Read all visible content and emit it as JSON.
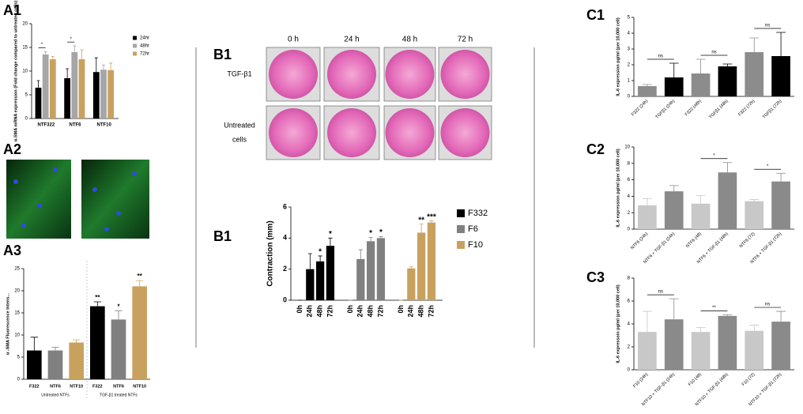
{
  "chart_data": [
    {
      "type": "bar",
      "panel": "A1",
      "y_label": "α-SMA mRNA expression (Fold change compared to untreated cells)",
      "categories": [
        "NTF322",
        "NTF6",
        "NTF10"
      ],
      "series": [
        {
          "name": "24hr",
          "color": "#000000",
          "values": [
            6.5,
            8.5,
            9.8
          ],
          "errors": [
            1.5,
            2,
            3
          ]
        },
        {
          "name": "48hr",
          "color": "#a6a6a6",
          "values": [
            13.5,
            14,
            10.3
          ],
          "errors": [
            0.6,
            1.3,
            1
          ]
        },
        {
          "name": "72hr",
          "color": "#c9a15f",
          "values": [
            12.5,
            12.5,
            10.2
          ],
          "errors": [
            0.6,
            2,
            1.5
          ]
        }
      ],
      "ylim": [
        0,
        20
      ],
      "yticks": [
        0,
        5,
        10,
        15,
        20
      ],
      "brackets": [
        {
          "label": "*",
          "category": 0,
          "series": [
            0,
            1
          ]
        },
        {
          "label": "*",
          "category": 1,
          "series": [
            0,
            1
          ]
        }
      ]
    },
    {
      "type": "bar",
      "panel": "A3",
      "y_label": "α -SMA Fluorescence Intens...",
      "categories": [
        "F322",
        "NTF6",
        "NTF10",
        "F322",
        "NTF6",
        "NTF10"
      ],
      "groups": [
        "Untreated NTFs",
        "TGF-β1 treated NTFs"
      ],
      "values": [
        6.5,
        6.5,
        8.3,
        16.5,
        13.5,
        21
      ],
      "errors": [
        3,
        0.7,
        0.6,
        1,
        2,
        1.3
      ],
      "colors": [
        "#000000",
        "#808080",
        "#c9a15f",
        "#000000",
        "#808080",
        "#c9a15f"
      ],
      "annotations": [
        null,
        null,
        null,
        "**",
        "*",
        "**"
      ],
      "ylim": [
        0,
        25
      ],
      "yticks": [
        0,
        5,
        10,
        15,
        20,
        25
      ]
    },
    {
      "type": "bar",
      "panel": "B1",
      "y_label": "Contraction (mm)",
      "categories": [
        "0h",
        "24h",
        "48h",
        "72h"
      ],
      "series": [
        {
          "name": "F332",
          "color": "#000000",
          "values": [
            0,
            2.0,
            2.5,
            3.5
          ],
          "errors": [
            0,
            1.0,
            0.35,
            0.5
          ],
          "annotations": [
            null,
            null,
            "*",
            "*"
          ]
        },
        {
          "name": "F6",
          "color": "#808080",
          "values": [
            0,
            2.65,
            3.8,
            4.0
          ],
          "errors": [
            0,
            0.6,
            0.25,
            0.1
          ],
          "annotations": [
            null,
            null,
            "*",
            "*"
          ]
        },
        {
          "name": "F10",
          "color": "#c9a15f",
          "values": [
            0,
            2.05,
            4.35,
            5.0
          ],
          "errors": [
            0,
            0.1,
            0.55,
            0.1
          ],
          "annotations": [
            null,
            null,
            "**",
            "***"
          ]
        }
      ],
      "ylim": [
        0,
        6
      ],
      "yticks": [
        0,
        2,
        4,
        6
      ]
    },
    {
      "type": "bar",
      "panel": "C1",
      "y_label": "IL-6 expression pg/ml (per 10,000 cell)",
      "categories": [
        "F322 (24h)",
        "TGFβ1 (24h)",
        "F322 (48h)",
        "TGFβ1 (48h)",
        "F322 (72h)",
        "TGFβ1 (72h)"
      ],
      "values": [
        0.65,
        1.2,
        1.45,
        1.9,
        2.8,
        2.55
      ],
      "errors": [
        0.1,
        0.9,
        0.9,
        0.15,
        0.9,
        1.5
      ],
      "colors": [
        "#8c8c8c",
        "#000000",
        "#8c8c8c",
        "#000000",
        "#8c8c8c",
        "#000000"
      ],
      "ylim": [
        0,
        5
      ],
      "yticks": [
        0,
        1,
        2,
        3,
        4,
        5
      ],
      "brackets": [
        {
          "label": "ns",
          "categories": [
            0,
            1
          ]
        },
        {
          "label": "ns",
          "categories": [
            2,
            3
          ]
        },
        {
          "label": "ns",
          "categories": [
            4,
            5
          ]
        }
      ]
    },
    {
      "type": "bar",
      "panel": "C2",
      "y_label": "IL-6 expression pg/ml (per 10,000 cell)",
      "categories": [
        "NTF6 (24h)",
        "NTF6 + TGF-β1 (24h)",
        "NTF6 (48)",
        "NTF6 + TGF-β1 (48h)",
        "NTF6 (72)",
        "NTF6 + TGF-β1 (72h)"
      ],
      "values": [
        2.9,
        4.6,
        3.1,
        6.9,
        3.4,
        5.8
      ],
      "errors": [
        0.8,
        0.7,
        1,
        1.2,
        0.2,
        1
      ],
      "colors": [
        "#c8c8c8",
        "#8a8a8a",
        "#c8c8c8",
        "#8a8a8a",
        "#c8c8c8",
        "#8a8a8a"
      ],
      "ylim": [
        0,
        10
      ],
      "yticks": [
        0,
        2,
        4,
        6,
        8,
        10
      ],
      "brackets": [
        {
          "label": "*",
          "categories": [
            2,
            3
          ]
        },
        {
          "label": "*",
          "categories": [
            4,
            5
          ]
        }
      ]
    },
    {
      "type": "bar",
      "panel": "C3",
      "y_label": "IL-6 expressoin pg/ml (per 10,000 cell)",
      "categories": [
        "F10 (24h)",
        "NTF10 + TGF-β1 (24h)",
        "F10 (48)",
        "NTF10 + TGF-β1 (48h)",
        "F10 (72)",
        "NTF10 + TGF-β1 (72h)"
      ],
      "values": [
        3.3,
        4.4,
        3.3,
        4.7,
        3.4,
        4.2
      ],
      "errors": [
        1.8,
        1.8,
        0.4,
        0.1,
        0.5,
        0.9
      ],
      "colors": [
        "#c8c8c8",
        "#8a8a8a",
        "#c8c8c8",
        "#8a8a8a",
        "#c8c8c8",
        "#8a8a8a"
      ],
      "ylim": [
        0,
        8
      ],
      "yticks": [
        0,
        2,
        4,
        6,
        8
      ],
      "brackets": [
        {
          "label": "ns",
          "categories": [
            0,
            1
          ]
        },
        {
          "label": "**",
          "categories": [
            2,
            3
          ]
        },
        {
          "label": "ns",
          "categories": [
            4,
            5
          ]
        }
      ]
    }
  ],
  "figure_panels": [
    {
      "panel": "A2"
    },
    {
      "panel": "B1",
      "columns": [
        "0 h",
        "24 h",
        "48 h",
        "72 h"
      ],
      "rows": [
        [
          "TGF-β1"
        ],
        [
          "Untreated",
          "cells"
        ]
      ]
    }
  ]
}
